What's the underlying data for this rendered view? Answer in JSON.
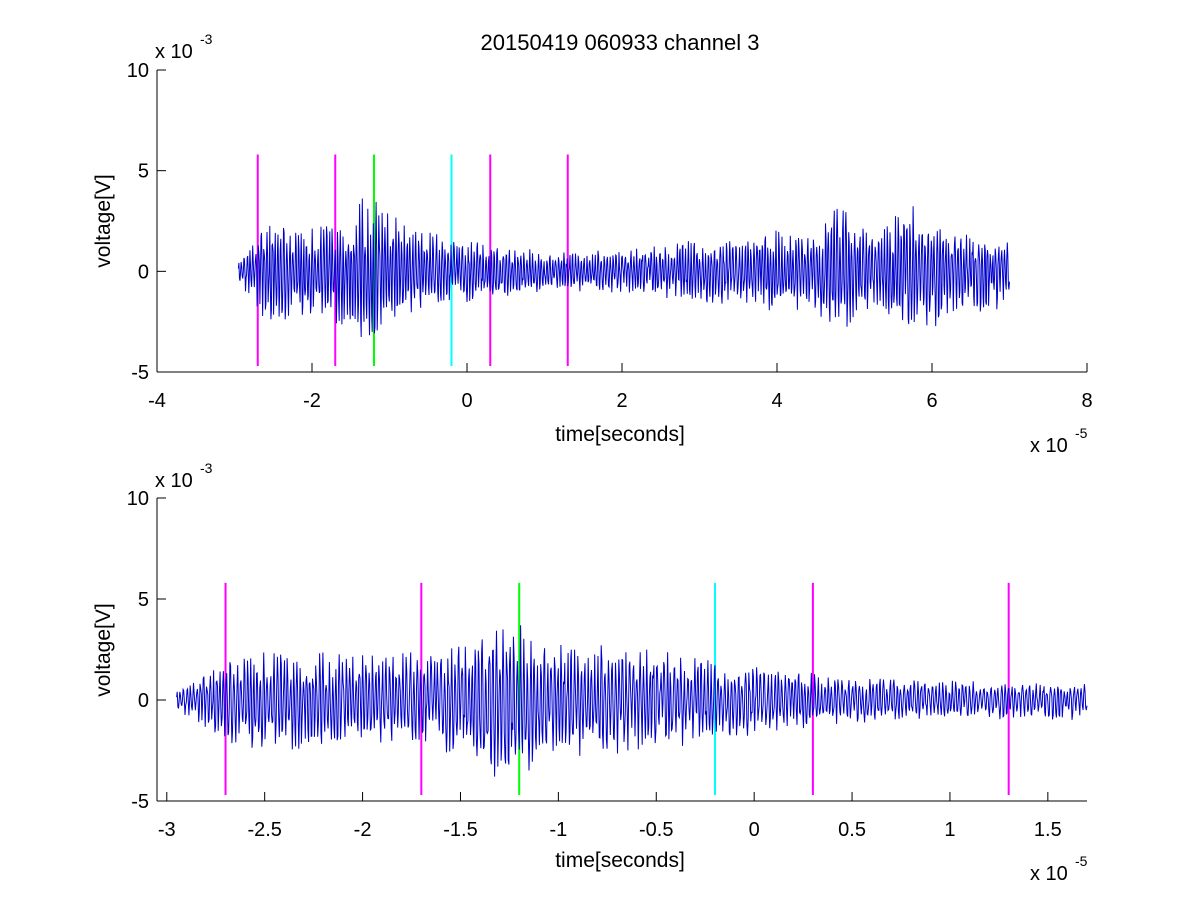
{
  "chart_data": [
    {
      "type": "line",
      "title": "20150419 060933 channel 3",
      "xlabel": "time[seconds]",
      "ylabel": "voltage[V]",
      "x_multiplier": "x 10",
      "x_multiplier_exp": "-5",
      "y_multiplier": "x 10",
      "y_multiplier_exp": "-3",
      "xlim": [
        -4,
        8
      ],
      "ylim": [
        -5,
        10
      ],
      "xticks": [
        -4,
        -2,
        0,
        2,
        4,
        6,
        8
      ],
      "xtick_labels": [
        "-4",
        "-2",
        "0",
        "2",
        "4",
        "6",
        "8"
      ],
      "yticks": [
        -5,
        0,
        5,
        10
      ],
      "ytick_labels": [
        "-5",
        "0",
        "5",
        "10"
      ],
      "grid": false,
      "series": [
        {
          "color": "#0000cc",
          "x_range": [
            -2.95,
            7.0
          ],
          "style": "noisy oscillation",
          "envelope": [
            [
              -2.95,
              0.6
            ],
            [
              -2.6,
              2.6
            ],
            [
              -2.0,
              2.3
            ],
            [
              -1.5,
              2.8
            ],
            [
              -1.3,
              4.0
            ],
            [
              -0.8,
              2.4
            ],
            [
              0.0,
              1.6
            ],
            [
              1.0,
              1.0
            ],
            [
              2.0,
              1.1
            ],
            [
              2.6,
              1.4
            ],
            [
              3.0,
              1.8
            ],
            [
              3.5,
              1.6
            ],
            [
              4.0,
              2.2
            ],
            [
              4.5,
              2.0
            ],
            [
              4.8,
              3.6
            ],
            [
              5.2,
              2.0
            ],
            [
              5.8,
              3.6
            ],
            [
              6.2,
              2.4
            ],
            [
              7.0,
              1.8
            ]
          ]
        }
      ],
      "markers": [
        {
          "x": -2.7,
          "color": "#ff00ff"
        },
        {
          "x": -1.7,
          "color": "#ff00ff"
        },
        {
          "x": -1.2,
          "color": "#00ff00"
        },
        {
          "x": -0.2,
          "color": "#00ffff"
        },
        {
          "x": 0.3,
          "color": "#ff00ff"
        },
        {
          "x": 1.3,
          "color": "#ff00ff"
        }
      ],
      "marker_y_range": [
        -4.7,
        5.8
      ]
    },
    {
      "type": "line",
      "title": "",
      "xlabel": "time[seconds]",
      "ylabel": "voltage[V]",
      "x_multiplier": "x 10",
      "x_multiplier_exp": "-5",
      "y_multiplier": "x 10",
      "y_multiplier_exp": "-3",
      "xlim": [
        -3.05,
        1.7
      ],
      "ylim": [
        -5,
        10
      ],
      "xticks": [
        -3,
        -2.5,
        -2,
        -1.5,
        -1,
        -0.5,
        0,
        0.5,
        1,
        1.5
      ],
      "xtick_labels": [
        "-3",
        "-2.5",
        "-2",
        "-1.5",
        "-1",
        "-0.5",
        "0",
        "0.5",
        "1",
        "1.5"
      ],
      "yticks": [
        -5,
        0,
        5,
        10
      ],
      "ytick_labels": [
        "-5",
        "0",
        "5",
        "10"
      ],
      "grid": false,
      "series": [
        {
          "color": "#0000cc",
          "x_range": [
            -2.95,
            1.7
          ],
          "style": "noisy oscillation",
          "envelope": [
            [
              -2.95,
              0.6
            ],
            [
              -2.6,
              2.6
            ],
            [
              -2.0,
              2.3
            ],
            [
              -1.5,
              2.8
            ],
            [
              -1.3,
              4.2
            ],
            [
              -1.0,
              3.0
            ],
            [
              -0.5,
              2.6
            ],
            [
              0.0,
              1.8
            ],
            [
              0.5,
              1.2
            ],
            [
              1.0,
              1.0
            ],
            [
              1.7,
              1.0
            ]
          ]
        }
      ],
      "markers": [
        {
          "x": -2.7,
          "color": "#ff00ff"
        },
        {
          "x": -1.7,
          "color": "#ff00ff"
        },
        {
          "x": -1.2,
          "color": "#00ff00"
        },
        {
          "x": -0.2,
          "color": "#00ffff"
        },
        {
          "x": 0.3,
          "color": "#ff00ff"
        },
        {
          "x": 1.3,
          "color": "#ff00ff"
        }
      ],
      "marker_y_range": [
        -4.7,
        5.8
      ]
    }
  ]
}
